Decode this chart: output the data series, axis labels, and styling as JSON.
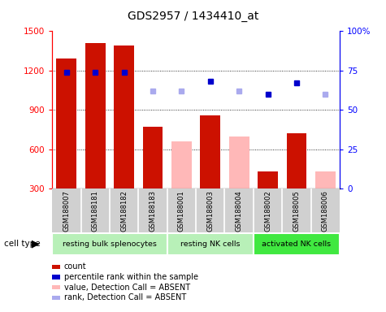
{
  "title": "GDS2957 / 1434410_at",
  "samples": [
    "GSM188007",
    "GSM188181",
    "GSM188182",
    "GSM188183",
    "GSM188001",
    "GSM188003",
    "GSM188004",
    "GSM188002",
    "GSM188005",
    "GSM188006"
  ],
  "count_values": [
    1290,
    1410,
    1390,
    770,
    null,
    860,
    null,
    430,
    720,
    null
  ],
  "absent_values": [
    null,
    null,
    null,
    null,
    660,
    null,
    700,
    null,
    null,
    430
  ],
  "rank_values": [
    74,
    74,
    74,
    null,
    null,
    68,
    null,
    60,
    67,
    null
  ],
  "absent_rank_values": [
    null,
    null,
    null,
    62,
    62,
    null,
    62,
    null,
    null,
    60
  ],
  "ylim_left": [
    300,
    1500
  ],
  "ylim_right": [
    0,
    100
  ],
  "yticks_left": [
    300,
    600,
    900,
    1200,
    1500
  ],
  "yticks_right": [
    0,
    25,
    50,
    75,
    100
  ],
  "yticklabels_right": [
    "0",
    "25",
    "50",
    "75",
    "100%"
  ],
  "cell_type_groups": [
    {
      "label": "resting bulk splenocytes",
      "start": 0,
      "end": 3,
      "color": "#b8f0b8"
    },
    {
      "label": "resting NK cells",
      "start": 4,
      "end": 6,
      "color": "#b8f0b8"
    },
    {
      "label": "activated NK cells",
      "start": 7,
      "end": 9,
      "color": "#40e840"
    }
  ],
  "bar_color_present": "#cc1100",
  "bar_color_absent": "#ffb8b8",
  "rank_color_present": "#0000cc",
  "rank_color_absent": "#aaaaee",
  "plot_bg": "#ffffff",
  "sample_area_bg": "#d0d0d0",
  "cell_type_label": "cell type",
  "grid_color": "#000000",
  "legend_items": [
    {
      "label": "count",
      "color": "#cc1100"
    },
    {
      "label": "percentile rank within the sample",
      "color": "#0000cc"
    },
    {
      "label": "value, Detection Call = ABSENT",
      "color": "#ffb8b8"
    },
    {
      "label": "rank, Detection Call = ABSENT",
      "color": "#aaaaee"
    }
  ]
}
